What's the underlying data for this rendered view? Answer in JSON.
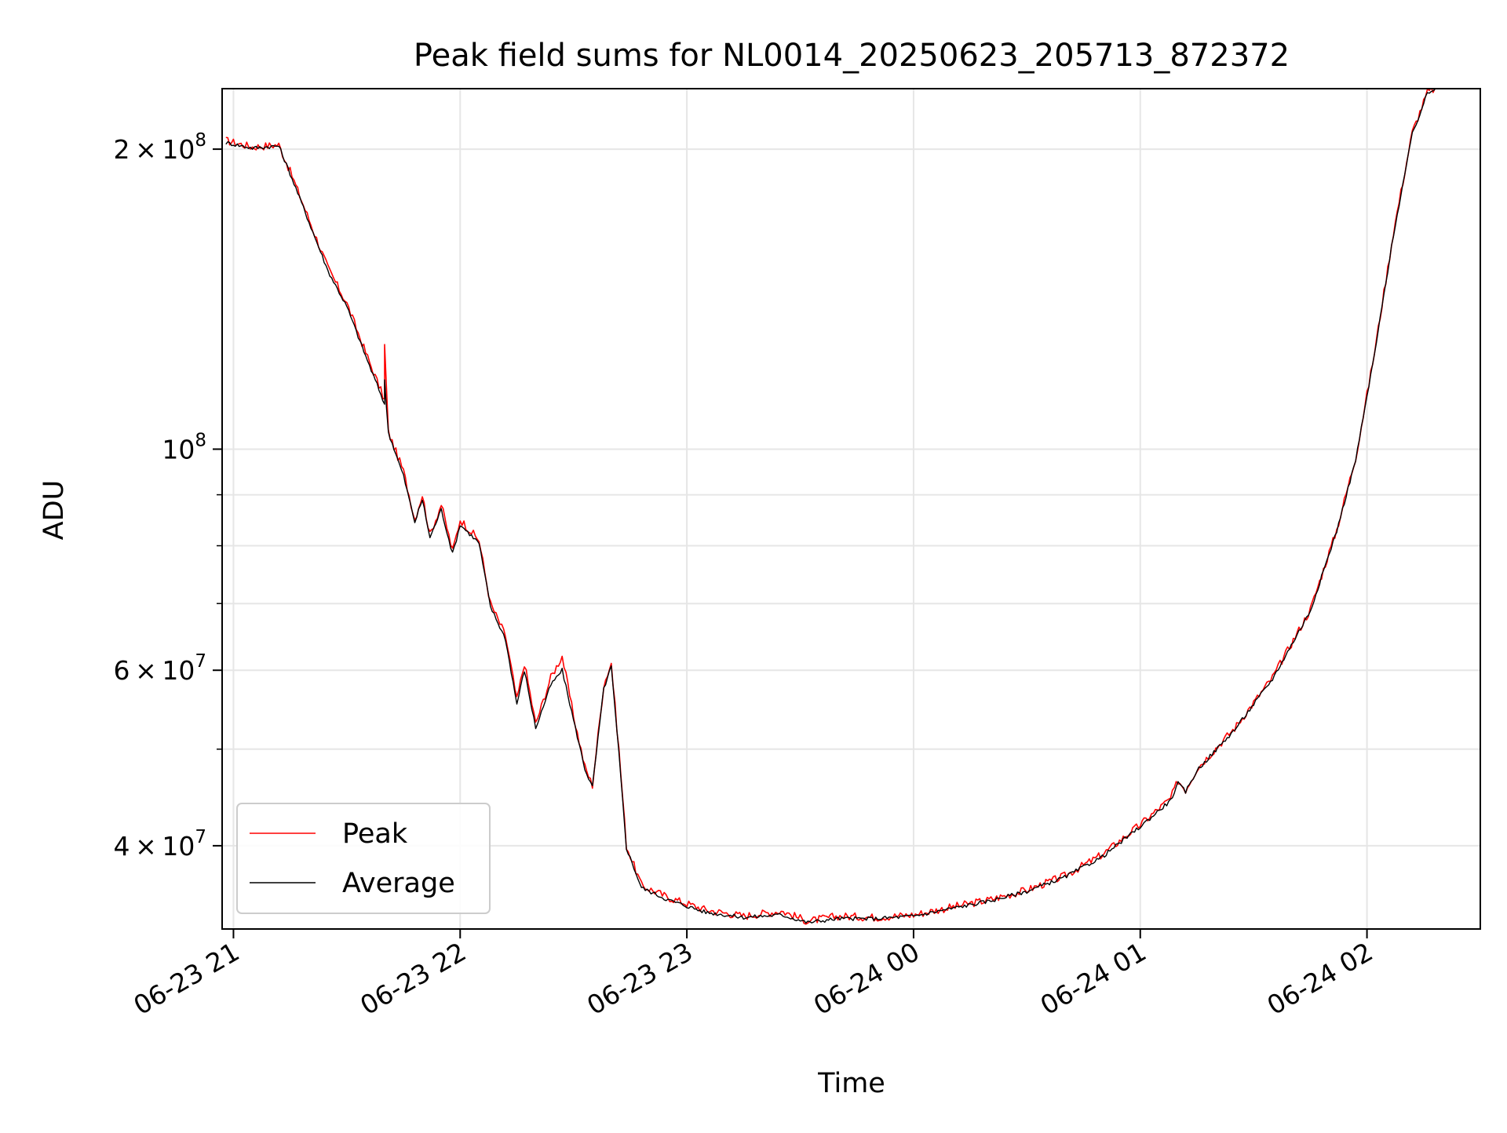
{
  "chart_data": {
    "type": "line",
    "title": "Peak field sums for NL0014_20250623_205713_872372",
    "xlabel": "Time",
    "ylabel": "ADU",
    "y_scale": "log",
    "ylim": [
      33000000,
      230000000
    ],
    "xlim": [
      "2025-06-23 20:57",
      "2025-06-24 02:30"
    ],
    "grid": true,
    "legend_position": "lower-left",
    "x_ticks": [
      "06-23 21",
      "06-23 22",
      "06-23 23",
      "06-24 00",
      "06-24 01",
      "06-24 02"
    ],
    "y_ticks": [
      {
        "value": 40000000,
        "mantissa": "4",
        "base": "10",
        "exp": "7"
      },
      {
        "value": 60000000,
        "mantissa": "6",
        "base": "10",
        "exp": "7"
      },
      {
        "value": 100000000,
        "mantissa": "",
        "base": "10",
        "exp": "8"
      },
      {
        "value": 200000000,
        "mantissa": "2",
        "base": "10",
        "exp": "8"
      }
    ],
    "series": [
      {
        "name": "Peak",
        "color": "#ff0000",
        "points": [
          [
            "2025-06-23 20:58",
            204000000
          ],
          [
            "2025-06-23 21:05",
            201000000
          ],
          [
            "2025-06-23 21:12",
            202000000
          ],
          [
            "2025-06-23 21:15",
            190000000
          ],
          [
            "2025-06-23 21:20",
            170000000
          ],
          [
            "2025-06-23 21:25",
            152000000
          ],
          [
            "2025-06-23 21:30",
            140000000
          ],
          [
            "2025-06-23 21:35",
            125000000
          ],
          [
            "2025-06-23 21:40",
            112000000
          ],
          [
            "2025-06-23 21:40",
            127000000
          ],
          [
            "2025-06-23 21:41",
            104000000
          ],
          [
            "2025-06-23 21:45",
            95000000
          ],
          [
            "2025-06-23 21:48",
            85000000
          ],
          [
            "2025-06-23 21:50",
            90000000
          ],
          [
            "2025-06-23 21:52",
            82000000
          ],
          [
            "2025-06-23 21:55",
            88000000
          ],
          [
            "2025-06-23 21:58",
            79000000
          ],
          [
            "2025-06-23 22:00",
            85000000
          ],
          [
            "2025-06-23 22:05",
            81000000
          ],
          [
            "2025-06-23 22:08",
            70000000
          ],
          [
            "2025-06-23 22:12",
            65000000
          ],
          [
            "2025-06-23 22:15",
            56000000
          ],
          [
            "2025-06-23 22:17",
            61000000
          ],
          [
            "2025-06-23 22:20",
            53000000
          ],
          [
            "2025-06-23 22:24",
            59000000
          ],
          [
            "2025-06-23 22:27",
            62000000
          ],
          [
            "2025-06-23 22:30",
            54000000
          ],
          [
            "2025-06-23 22:33",
            48000000
          ],
          [
            "2025-06-23 22:35",
            46000000
          ],
          [
            "2025-06-23 22:38",
            58000000
          ],
          [
            "2025-06-23 22:40",
            61000000
          ],
          [
            "2025-06-23 22:42",
            50000000
          ],
          [
            "2025-06-23 22:44",
            40000000
          ],
          [
            "2025-06-23 22:48",
            36500000
          ],
          [
            "2025-06-23 22:55",
            35500000
          ],
          [
            "2025-06-23 23:05",
            34500000
          ],
          [
            "2025-06-23 23:15",
            34000000
          ],
          [
            "2025-06-23 23:25",
            34400000
          ],
          [
            "2025-06-23 23:32",
            33600000
          ],
          [
            "2025-06-23 23:40",
            34000000
          ],
          [
            "2025-06-23 23:50",
            33900000
          ],
          [
            "2025-06-24 00:00",
            34100000
          ],
          [
            "2025-06-24 00:10",
            34700000
          ],
          [
            "2025-06-24 00:20",
            35300000
          ],
          [
            "2025-06-24 00:30",
            36100000
          ],
          [
            "2025-06-24 00:40",
            37300000
          ],
          [
            "2025-06-24 00:50",
            39200000
          ],
          [
            "2025-06-24 01:00",
            42000000
          ],
          [
            "2025-06-24 01:08",
            44600000
          ],
          [
            "2025-06-24 01:10",
            46500000
          ],
          [
            "2025-06-24 01:12",
            45500000
          ],
          [
            "2025-06-24 01:15",
            47800000
          ],
          [
            "2025-06-24 01:25",
            52500000
          ],
          [
            "2025-06-24 01:35",
            59000000
          ],
          [
            "2025-06-24 01:45",
            69000000
          ],
          [
            "2025-06-24 01:52",
            83000000
          ],
          [
            "2025-06-24 01:57",
            98000000
          ],
          [
            "2025-06-24 02:02",
            125000000
          ],
          [
            "2025-06-24 02:07",
            165000000
          ],
          [
            "2025-06-24 02:12",
            208000000
          ],
          [
            "2025-06-24 02:16",
            228000000
          ],
          [
            "2025-06-24 02:18",
            230000000
          ]
        ]
      },
      {
        "name": "Average",
        "color": "#000000",
        "points": [
          [
            "2025-06-23 20:58",
            203000000
          ],
          [
            "2025-06-23 21:05",
            200500000
          ],
          [
            "2025-06-23 21:12",
            201500000
          ],
          [
            "2025-06-23 21:15",
            189000000
          ],
          [
            "2025-06-23 21:20",
            169000000
          ],
          [
            "2025-06-23 21:25",
            151000000
          ],
          [
            "2025-06-23 21:30",
            139000000
          ],
          [
            "2025-06-23 21:35",
            124000000
          ],
          [
            "2025-06-23 21:40",
            111000000
          ],
          [
            "2025-06-23 21:40",
            117000000
          ],
          [
            "2025-06-23 21:41",
            104000000
          ],
          [
            "2025-06-23 21:45",
            94000000
          ],
          [
            "2025-06-23 21:48",
            84500000
          ],
          [
            "2025-06-23 21:50",
            89000000
          ],
          [
            "2025-06-23 21:52",
            81500000
          ],
          [
            "2025-06-23 21:55",
            87000000
          ],
          [
            "2025-06-23 21:58",
            78500000
          ],
          [
            "2025-06-23 22:00",
            84000000
          ],
          [
            "2025-06-23 22:05",
            80500000
          ],
          [
            "2025-06-23 22:08",
            69500000
          ],
          [
            "2025-06-23 22:12",
            64500000
          ],
          [
            "2025-06-23 22:15",
            55500000
          ],
          [
            "2025-06-23 22:17",
            60000000
          ],
          [
            "2025-06-23 22:20",
            52500000
          ],
          [
            "2025-06-23 22:24",
            58000000
          ],
          [
            "2025-06-23 22:27",
            60000000
          ],
          [
            "2025-06-23 22:30",
            53500000
          ],
          [
            "2025-06-23 22:33",
            47800000
          ],
          [
            "2025-06-23 22:35",
            45800000
          ],
          [
            "2025-06-23 22:38",
            57500000
          ],
          [
            "2025-06-23 22:40",
            60500000
          ],
          [
            "2025-06-23 22:42",
            49500000
          ],
          [
            "2025-06-23 22:44",
            39800000
          ],
          [
            "2025-06-23 22:48",
            36300000
          ],
          [
            "2025-06-23 22:55",
            35300000
          ],
          [
            "2025-06-23 23:05",
            34300000
          ],
          [
            "2025-06-23 23:15",
            33900000
          ],
          [
            "2025-06-23 23:25",
            34100000
          ],
          [
            "2025-06-23 23:32",
            33500000
          ],
          [
            "2025-06-23 23:40",
            33800000
          ],
          [
            "2025-06-23 23:50",
            33800000
          ],
          [
            "2025-06-24 00:00",
            34000000
          ],
          [
            "2025-06-24 00:10",
            34600000
          ],
          [
            "2025-06-24 00:20",
            35200000
          ],
          [
            "2025-06-24 00:30",
            36000000
          ],
          [
            "2025-06-24 00:40",
            37200000
          ],
          [
            "2025-06-24 00:50",
            39000000
          ],
          [
            "2025-06-24 01:00",
            41800000
          ],
          [
            "2025-06-24 01:08",
            44400000
          ],
          [
            "2025-06-24 01:10",
            46200000
          ],
          [
            "2025-06-24 01:12",
            45300000
          ],
          [
            "2025-06-24 01:15",
            47600000
          ],
          [
            "2025-06-24 01:25",
            52300000
          ],
          [
            "2025-06-24 01:35",
            58800000
          ],
          [
            "2025-06-24 01:45",
            68800000
          ],
          [
            "2025-06-24 01:52",
            82800000
          ],
          [
            "2025-06-24 01:57",
            97500000
          ],
          [
            "2025-06-24 02:02",
            124500000
          ],
          [
            "2025-06-24 02:07",
            164000000
          ],
          [
            "2025-06-24 02:12",
            207000000
          ],
          [
            "2025-06-24 02:16",
            227500000
          ],
          [
            "2025-06-24 02:18",
            229500000
          ]
        ]
      }
    ]
  }
}
